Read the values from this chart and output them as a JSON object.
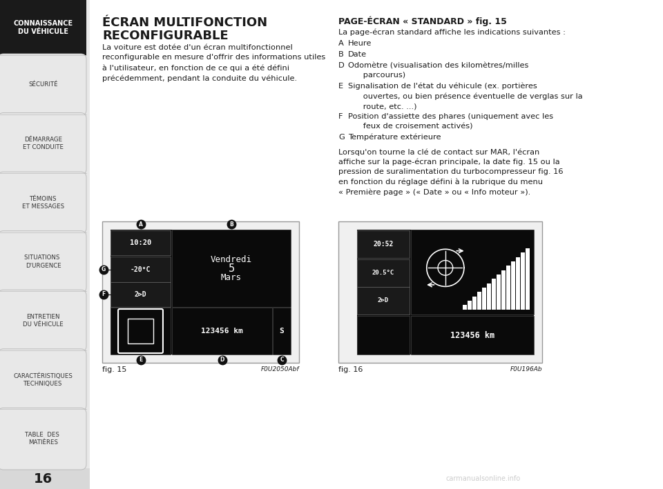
{
  "page_bg": "#ffffff",
  "sidebar_active_bg": "#1a1a1a",
  "sidebar_active_text": "#ffffff",
  "sidebar_inactive_bg": "#e8e8e8",
  "sidebar_inactive_text": "#333333",
  "sidebar_items": [
    {
      "text": "CONNAISSANCE\nDU VÉHICULE",
      "active": true
    },
    {
      "text": "SÉCURITÉ",
      "active": false
    },
    {
      "text": "DÉMARRAGE\nET CONDUITE",
      "active": false
    },
    {
      "text": "TÉMOINS\nET MESSAGES",
      "active": false
    },
    {
      "text": "SITUATIONS \nD'URGENCE",
      "active": false
    },
    {
      "text": "ENTRETIEN\nDU VÉHICULE",
      "active": false
    },
    {
      "text": "CARACTÉRISTIQUES\nTECHNIQUES",
      "active": false
    },
    {
      "text": "TABLE  DES \nMATIÈRES",
      "active": false
    }
  ],
  "page_number": "16",
  "main_title_line1": "ÉCRAN MULTIFONCTION",
  "main_title_line2": "RECONFIGURABLE",
  "main_body": "La voiture est dotée d'un écran multifonctionnel\nreconfigurable en mesure d'offrir des informations utiles\nà l'utilisateur, en fonction de ce qui a été défini\nprécédemment, pendant la conduite du véhicule.",
  "right_title": "PAGE-ÉCRAN « STANDARD » fig. 15",
  "right_body": "La page-écran standard affiche les indications suivantes :",
  "right_items": [
    [
      "A",
      "Heure"
    ],
    [
      "B",
      "Date"
    ],
    [
      "D",
      "Odomètre (visualisation des kilomètres/milles\n      parcourus)"
    ],
    [
      "E",
      "Signalisation de l'état du véhicule (ex. portières\n      ouvertes, ou bien présence éventuelle de verglas sur la\n      route, etc. ...)"
    ],
    [
      "F",
      "Position d'assiette des phares (uniquement avec les\n      feux de croisement activés)"
    ],
    [
      "G",
      "Température extérieure"
    ]
  ],
  "right_para": "Lorsqu'on tourne la clé de contact sur MAR, l'écran\naffiche sur la page-écran principale, la date fig. 15 ou la\npression de suralimentation du turbocompresseur fig. 16\nen fonction du réglage défini à la rubrique du menu\n« Première page » (« Date » ou « Info moteur »).",
  "fig15_label": "fig. 15",
  "fig15_code": "F0U2050Abf",
  "fig16_label": "fig. 16",
  "fig16_code": "F0U196Ab",
  "watermark": "carmanualsonline.info"
}
